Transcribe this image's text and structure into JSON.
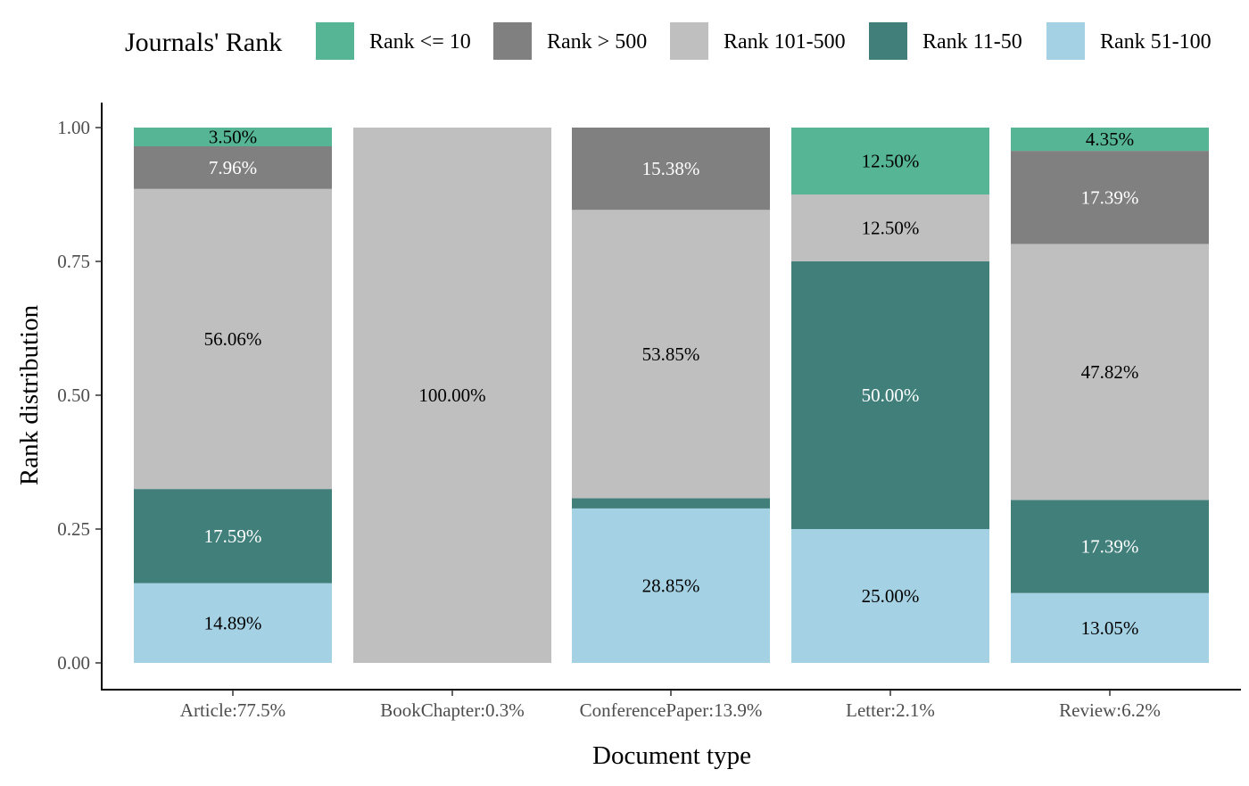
{
  "chart_data": {
    "type": "bar",
    "stacked": true,
    "xlabel": "Document type",
    "ylabel": "Rank distribution",
    "ylim": [
      0,
      1
    ],
    "yticks": [
      "0.00",
      "0.25",
      "0.50",
      "0.75",
      "1.00"
    ],
    "grid": false,
    "legend": {
      "title": "Journals' Rank",
      "position": "top",
      "entries": [
        {
          "key": "r10",
          "label": "Rank <= 10",
          "color": "#55b594"
        },
        {
          "key": "r500",
          "label": "Rank > 500",
          "color": "#808080"
        },
        {
          "key": "r101",
          "label": "Rank 101-500",
          "color": "#bfbfbf"
        },
        {
          "key": "r11",
          "label": "Rank 11-50",
          "color": "#417f7b"
        },
        {
          "key": "r51",
          "label": "Rank 51-100",
          "color": "#a4d1e3"
        }
      ]
    },
    "stack_order_bottom_to_top": [
      "r51",
      "r11",
      "r101",
      "r500",
      "r10"
    ],
    "label_colors": {
      "r10": "#000000",
      "r500": "#ffffff",
      "r101": "#000000",
      "r11": "#ffffff",
      "r51": "#000000"
    },
    "categories": [
      "Article:77.5%",
      "BookChapter:0.3%",
      "ConferencePaper:13.9%",
      "Letter:2.1%",
      "Review:6.2%"
    ],
    "series": [
      {
        "key": "r51",
        "values": [
          0.1489,
          0.0,
          0.2885,
          0.25,
          0.1305
        ],
        "labels": [
          "14.89%",
          "",
          "28.85%",
          "25.00%",
          "13.05%"
        ]
      },
      {
        "key": "r11",
        "values": [
          0.1759,
          0.0,
          0.0192,
          0.5,
          0.1739
        ],
        "labels": [
          "17.59%",
          "",
          "",
          "50.00%",
          "17.39%"
        ]
      },
      {
        "key": "r101",
        "values": [
          0.5606,
          1.0,
          0.5385,
          0.125,
          0.4782
        ],
        "labels": [
          "56.06%",
          "100.00%",
          "53.85%",
          "12.50%",
          "47.82%"
        ]
      },
      {
        "key": "r500",
        "values": [
          0.0796,
          0.0,
          0.1538,
          0.0,
          0.1739
        ],
        "labels": [
          "7.96%",
          "",
          "15.38%",
          "",
          "17.39%"
        ]
      },
      {
        "key": "r10",
        "values": [
          0.035,
          0.0,
          0.0,
          0.125,
          0.0435
        ],
        "labels": [
          "3.50%",
          "",
          "",
          "12.50%",
          "4.35%"
        ]
      }
    ]
  }
}
